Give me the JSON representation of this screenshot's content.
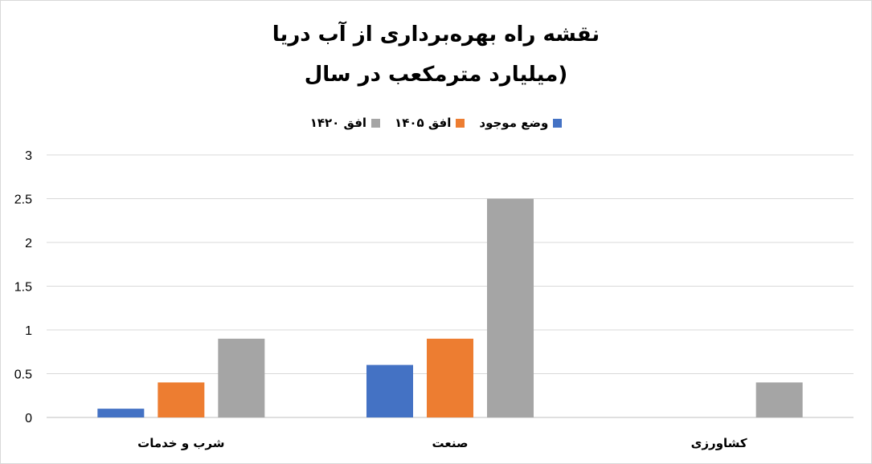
{
  "chart_data": {
    "type": "bar",
    "title_line1": "نقشه راه بهره‌برداری از آب دریا",
    "title_line2": "(میلیارد مترمکعب در سال",
    "categories": [
      "شرب و خدمات",
      "صنعت",
      "کشاورزی"
    ],
    "series": [
      {
        "name": "وضع موجود",
        "color": "#4472c4",
        "values": [
          0.1,
          0.6,
          0
        ]
      },
      {
        "name": "افق ۱۴۰۵",
        "color": "#ed7d31",
        "values": [
          0.4,
          0.9,
          0
        ]
      },
      {
        "name": "افق ۱۴۲۰",
        "color": "#a5a5a5",
        "values": [
          0.9,
          2.5,
          0.4
        ]
      }
    ],
    "ylim": [
      0,
      3
    ],
    "yticks": [
      "0",
      "0.5",
      "1",
      "1.5",
      "2",
      "2.5",
      "3"
    ],
    "grid": true,
    "legend_position": "top"
  }
}
